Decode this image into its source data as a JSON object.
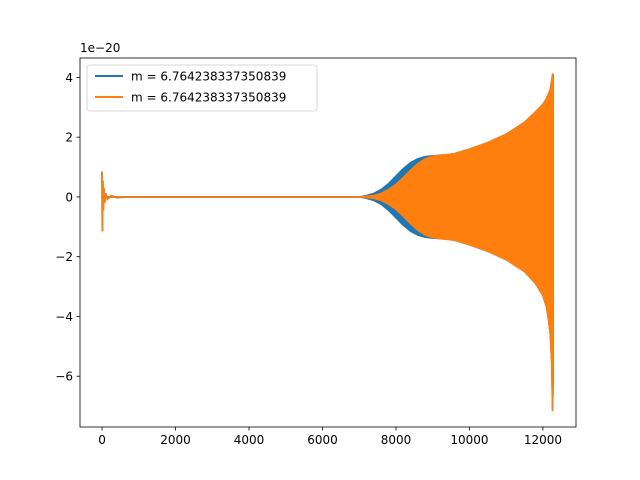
{
  "chart_data": {
    "type": "line",
    "title": "",
    "xlabel": "",
    "ylabel": "",
    "y_offset_text": "1e−20",
    "xlim": [
      -600,
      12900
    ],
    "ylim": [
      -7.7,
      4.65
    ],
    "x_ticks": [
      0,
      2000,
      4000,
      6000,
      8000,
      10000,
      12000
    ],
    "x_tick_labels": [
      "0",
      "2000",
      "4000",
      "6000",
      "8000",
      "10000",
      "12000"
    ],
    "y_ticks": [
      4,
      2,
      0,
      -2,
      -4,
      -6
    ],
    "y_tick_labels": [
      "4",
      "2",
      "0",
      "−2",
      "−4",
      "−6"
    ],
    "grid": false,
    "legend": {
      "placement": "top-left"
    },
    "series": [
      {
        "name": "m = 6.764238337350839",
        "color": "#1f77b4",
        "envelope_x": [
          0,
          7000,
          7200,
          7400,
          7600,
          7800,
          8000,
          8200,
          8400,
          8600,
          8800,
          9000,
          9300,
          9600,
          10000,
          10500,
          11000,
          11500,
          11800,
          12000,
          12100,
          12150,
          12200,
          12240,
          12260,
          12280
        ],
        "envelope_upper": [
          0,
          0,
          0.05,
          0.12,
          0.25,
          0.45,
          0.7,
          0.95,
          1.15,
          1.28,
          1.35,
          1.38,
          1.4,
          1.45,
          1.6,
          1.82,
          2.1,
          2.5,
          2.85,
          3.1,
          3.3,
          3.45,
          3.6,
          3.9,
          4.1,
          4.1
        ],
        "envelope_lower": [
          0,
          0,
          -0.05,
          -0.12,
          -0.25,
          -0.45,
          -0.7,
          -0.95,
          -1.15,
          -1.28,
          -1.35,
          -1.38,
          -1.4,
          -1.45,
          -1.6,
          -1.82,
          -2.1,
          -2.5,
          -2.9,
          -3.3,
          -3.7,
          -4.1,
          -4.6,
          -5.6,
          -7.15,
          -6.2
        ]
      },
      {
        "name": "m = 6.764238337350839",
        "color": "#ff7f0e",
        "envelope_x": [
          0,
          7000,
          7400,
          7600,
          7800,
          8000,
          8200,
          8400,
          8600,
          8800,
          9000,
          9200,
          9400,
          9600,
          10000,
          10500,
          11000,
          11500,
          11800,
          12000,
          12100,
          12150,
          12200,
          12240,
          12260,
          12280
        ],
        "envelope_upper": [
          0,
          0,
          0.05,
          0.12,
          0.25,
          0.42,
          0.65,
          0.9,
          1.12,
          1.28,
          1.36,
          1.4,
          1.42,
          1.45,
          1.6,
          1.82,
          2.1,
          2.5,
          2.85,
          3.1,
          3.3,
          3.45,
          3.6,
          3.9,
          4.1,
          4.1
        ],
        "envelope_lower": [
          0,
          0,
          -0.05,
          -0.12,
          -0.25,
          -0.42,
          -0.65,
          -0.9,
          -1.12,
          -1.28,
          -1.36,
          -1.4,
          -1.42,
          -1.45,
          -1.6,
          -1.82,
          -2.1,
          -2.5,
          -2.9,
          -3.3,
          -3.7,
          -4.1,
          -4.6,
          -5.6,
          -7.15,
          -6.2
        ]
      }
    ],
    "initial_transient": {
      "x": [
        0,
        10,
        20,
        35,
        50,
        70,
        100,
        150,
        250,
        400,
        600
      ],
      "y": [
        0.85,
        -1.15,
        0.55,
        -0.45,
        0.3,
        -0.2,
        0.12,
        -0.07,
        0.04,
        -0.02,
        0
      ]
    }
  }
}
